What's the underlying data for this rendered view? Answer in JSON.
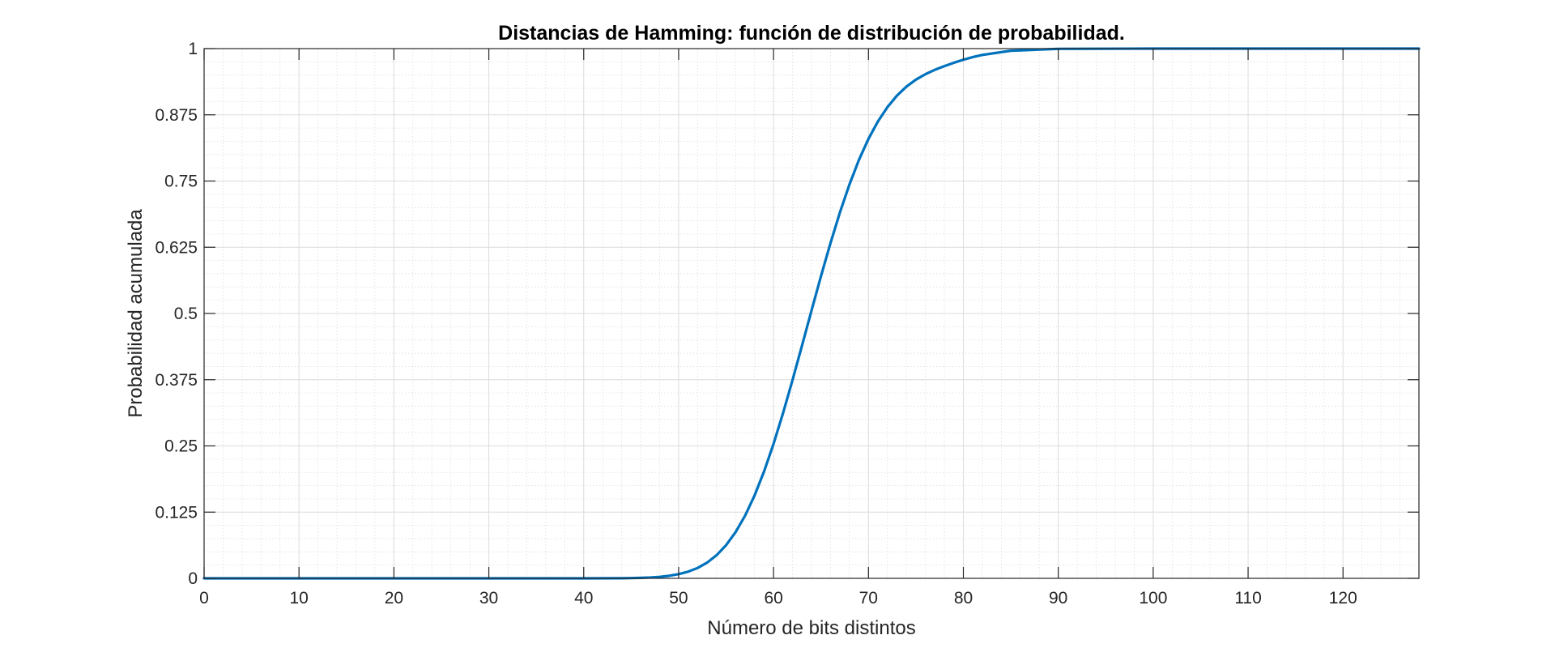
{
  "chart_data": {
    "type": "line",
    "title": "Distancias de Hamming: función de distribución de probabilidad.",
    "xlabel": "Número de bits distintos",
    "ylabel": "Probabilidad acumulada",
    "xlim": [
      0,
      128
    ],
    "ylim": [
      0,
      1
    ],
    "x_ticks": [
      0,
      10,
      20,
      30,
      40,
      50,
      60,
      70,
      80,
      90,
      100,
      110,
      120
    ],
    "x_tick_labels": [
      "0",
      "10",
      "20",
      "30",
      "40",
      "50",
      "60",
      "70",
      "80",
      "90",
      "100",
      "110",
      "120"
    ],
    "y_ticks": [
      0,
      0.125,
      0.25,
      0.375,
      0.5,
      0.625,
      0.75,
      0.875,
      1
    ],
    "y_tick_labels": [
      "0",
      "0.125",
      "0.25",
      "0.375",
      "0.5",
      "0.625",
      "0.75",
      "0.875",
      "1"
    ],
    "grid": true,
    "minor_grid": true,
    "box": true,
    "line_color": "#0072BD",
    "series": [
      {
        "x": [
          0,
          10,
          20,
          30,
          40,
          44,
          45,
          46,
          47,
          48,
          49,
          50,
          51,
          52,
          53,
          54,
          55,
          56,
          57,
          58,
          59,
          60,
          61,
          62,
          63,
          64,
          65,
          66,
          67,
          68,
          69,
          70,
          71,
          72,
          73,
          74,
          75,
          76,
          77,
          78,
          79,
          80,
          81,
          82,
          85,
          90,
          100,
          110,
          120,
          128
        ],
        "values": [
          0,
          0,
          0,
          0,
          0,
          0.0002,
          0.0005,
          0.0009,
          0.0016,
          0.0028,
          0.0048,
          0.0079,
          0.0126,
          0.0196,
          0.0297,
          0.0437,
          0.0626,
          0.0872,
          0.1183,
          0.1565,
          0.2018,
          0.2539,
          0.3119,
          0.3743,
          0.4395,
          0.5055,
          0.5706,
          0.633,
          0.6911,
          0.7437,
          0.79,
          0.8296,
          0.8626,
          0.8896,
          0.9112,
          0.9282,
          0.9414,
          0.9517,
          0.96,
          0.967,
          0.9733,
          0.979,
          0.984,
          0.988,
          0.996,
          0.9995,
          1,
          1,
          1,
          1
        ]
      }
    ]
  }
}
